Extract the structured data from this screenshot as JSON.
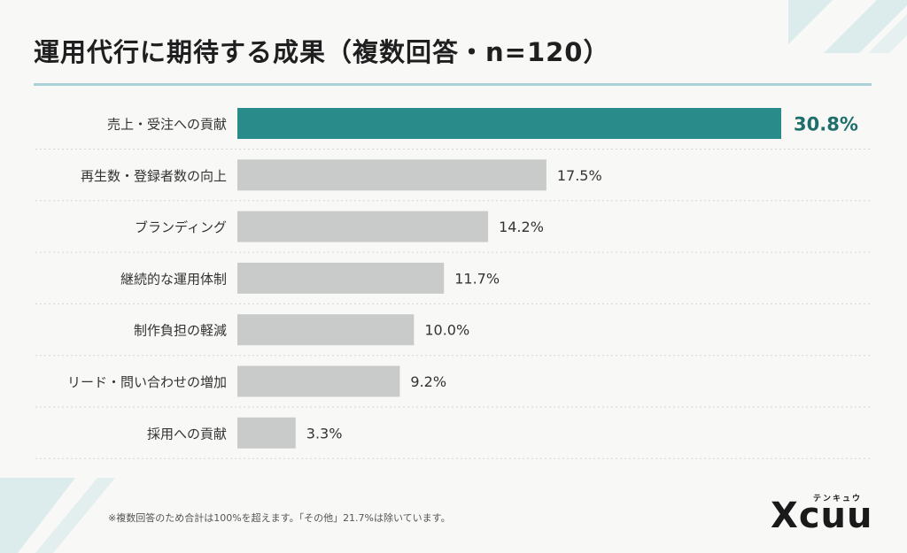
{
  "title": "運用代行に期待する成果（複数回答・n=120）",
  "footnote": "※複数回答のため合計は100%を超えます。「その他」21.7%は除いています。",
  "logo": {
    "text": "Xcuu",
    "kana": "テンキュウ"
  },
  "colors": {
    "highlight": "#2a8c8a",
    "bar": "#c9cbcb",
    "highlight_label": "#1e6f6c",
    "accent_rule": "#a9d3d6"
  },
  "chart_data": {
    "type": "bar",
    "orientation": "horizontal",
    "categories": [
      "売上・受注への貢献",
      "再生数・登録者数の向上",
      "ブランディング",
      "継続的な運用体制",
      "制作負担の軽減",
      "リード・問い合わせの増加",
      "採用への貢献"
    ],
    "values": [
      30.8,
      17.5,
      14.2,
      11.7,
      10.0,
      9.2,
      3.3
    ],
    "value_labels": [
      "30.8%",
      "17.5%",
      "14.2%",
      "11.7%",
      "10.0%",
      "9.2%",
      "3.3%"
    ],
    "highlight_index": 0,
    "xlim": [
      0,
      30.8
    ],
    "grid": false,
    "xlabel": "",
    "ylabel": ""
  }
}
